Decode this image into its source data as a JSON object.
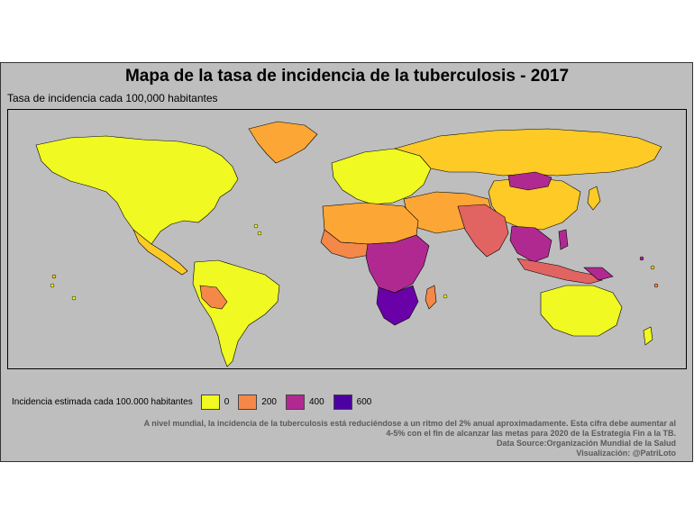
{
  "title": "Mapa de la tasa de incidencia de la tuberculosis - 2017",
  "subtitle": "Tasa de incidencia cada 100,000 habitantes",
  "legend": {
    "title": "Incidencia estimada cada 100.000 habitantes",
    "items": [
      {
        "label": "0",
        "color": "#f0f921"
      },
      {
        "label": "200",
        "color": "#f48849"
      },
      {
        "label": "400",
        "color": "#b02991"
      },
      {
        "label": "600",
        "color": "#4c02a1"
      }
    ]
  },
  "caption": {
    "line1": "A nivel mundial, la incidencia de la tuberculosis está reduciéndose a un ritmo del 2% anual aproximadamente. Esta cifra debe aumentar al",
    "line2": "4-5% con el fin de alcanzar las metas para 2020 de la Estrategia Fin a la TB.",
    "line3": "Data Source:Organización Mundial de la Salud",
    "line4": "Visualización: @PatriLoto"
  },
  "map_colors": {
    "low": "#f0f921",
    "low_mid": "#fdca26",
    "mid_low": "#fca636",
    "mid": "#f48849",
    "mid_high": "#e16462",
    "high": "#b02991",
    "very_high": "#6a00a8",
    "extreme": "#4c02a1",
    "background": "#bebebe",
    "border": "#000000"
  }
}
